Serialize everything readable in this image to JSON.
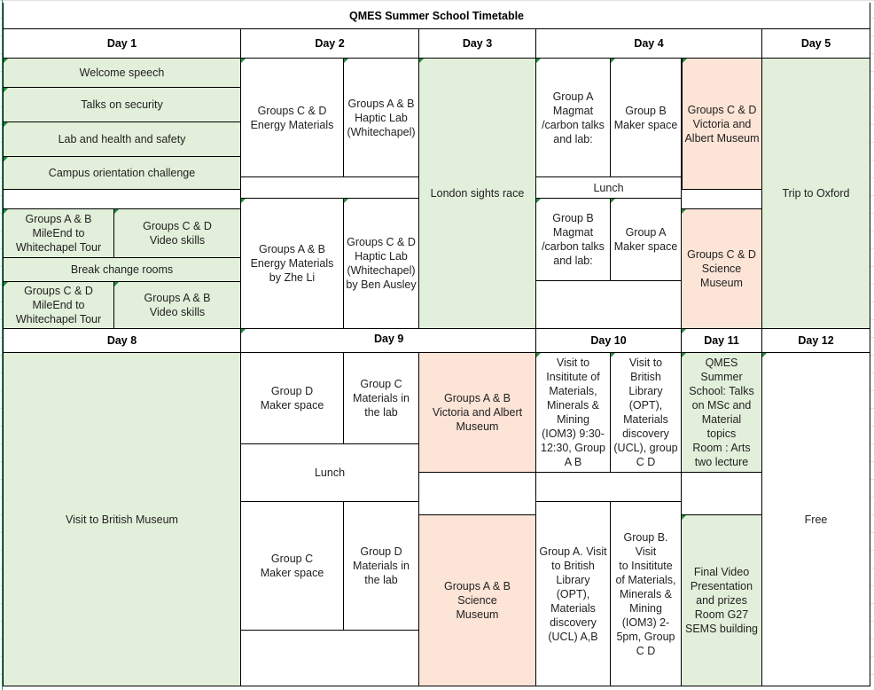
{
  "title": "QMES Summer School Timetable",
  "headers": {
    "day1": "Day 1",
    "day2": "Day 2",
    "day3": "Day 3",
    "day4": "Day 4",
    "day5": "Day 5",
    "day8": "Day 8",
    "day9": "Day 9",
    "day10": "Day 10",
    "day11": "Day 11",
    "day12": "Day 12"
  },
  "day1": {
    "welcome": "Welcome speech",
    "security": "Talks on security",
    "safety": "Lab and health and safety",
    "orientation": "Campus orientation challenge",
    "tour_ab": "Groups A & B\nMileEnd to\nWhitechapel Tour",
    "video_cd": "Groups C & D\nVideo skills",
    "break": "Break change rooms",
    "tour_cd": "Groups C & D\nMileEnd to\nWhitechapel Tour",
    "video_ab": "Groups A & B\nVideo skills"
  },
  "day2": {
    "energy_cd": "Groups C & D\nEnergy Materials",
    "haptic_ab": "Groups A & B\nHaptic Lab\n(Whitechapel)",
    "energy_ab": "Groups A & B\nEnergy Materials\nby Zhe Li",
    "haptic_cd": "Groups C & D\nHaptic Lab\n(Whitechapel)\nby Ben Ausley"
  },
  "day3": {
    "race": "London  sights race"
  },
  "day4": {
    "magmat_a": "Group A\nMagmat\n/carbon talks\nand lab:",
    "maker_b": "Group B\nMaker space",
    "va_cd": "Groups C & D\nVictoria  and\nAlbert Museum",
    "lunch": "Lunch",
    "magmat_b": "Group B\nMagmat\n/carbon talks\nand lab:",
    "maker_a": "Group A\nMaker space",
    "science_cd": "Groups C & D\nScience\nMuseum"
  },
  "day5": {
    "oxford": "Trip to Oxford"
  },
  "day8": {
    "museum": "Visit to British Museum"
  },
  "day9": {
    "maker_d": "Group D\nMaker space",
    "lab_c": "Group C\nMaterials in\nthe lab",
    "va_ab": "Groups A & B\nVictoria and  Albert\nMuseum",
    "lunch": "Lunch",
    "maker_c": "Group C\nMaker space",
    "lab_d": "Group D\nMaterials in\nthe lab",
    "science_ab": "Groups A & B\nScience\nMuseum"
  },
  "day10": {
    "iom3_ab": "Visit to\nInsititute of\nMaterials,\nMinerals &\nMining\n(IOM3) 9:30-\n12:30, Group\nA B",
    "library_cd": "Visit to\nBritish Library\n(OPT),\nMaterials\ndiscovery\n(UCL), group\nC D",
    "library_a": "Group A. Visit\nto British\nLibrary (OPT),\nMaterials\ndiscovery\n(UCL) A,B",
    "iom3_b": "Group B. Visit\nto Insititute\nof Materials,\nMinerals &\nMining\n(IOM3) 2-\n5pm, Group\nC D"
  },
  "day11": {
    "talks": "QMES\nSummer\nSchool: Talks\non MSc and\nMaterial\ntopics\nRoom : Arts\ntwo lecture",
    "final": "Final Video\nPresentation\nand prizes\nRoom G27\nSEMS building"
  },
  "day12": {
    "free": "Free"
  },
  "colors": {
    "green": "#e2efda",
    "peach": "#fce4d6"
  }
}
